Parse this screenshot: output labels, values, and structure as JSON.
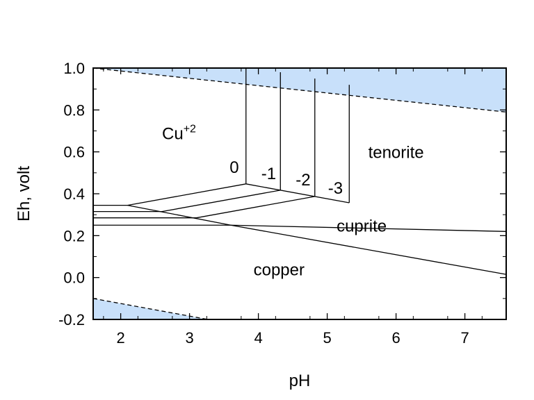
{
  "chart_data": {
    "type": "line",
    "title": "",
    "xlabel": "pH",
    "ylabel": "Eh, volt",
    "xlim": [
      1.6,
      7.6
    ],
    "ylim": [
      -0.2,
      1.0
    ],
    "xticks": [
      2,
      3,
      4,
      5,
      6,
      7
    ],
    "yticks": [
      -0.2,
      0.0,
      0.2,
      0.4,
      0.6,
      0.8,
      1.0
    ],
    "ytick_labels": [
      "-0.2",
      "0.0",
      "0.2",
      "0.4",
      "0.6",
      "0.8",
      "1.0"
    ],
    "grid": false,
    "colors": {
      "water_instability": "#c8e0fa",
      "lines": "#000000"
    },
    "water_upper": {
      "x": [
        1.6,
        7.6
      ],
      "y": [
        1.0,
        0.79
      ]
    },
    "water_lower": {
      "x": [
        1.6,
        7.6
      ],
      "y": [
        -0.1,
        -0.46
      ]
    },
    "series": [
      {
        "x": [
          1.6,
          3.6,
          7.6
        ],
        "y": [
          0.25,
          0.25,
          0.015
        ]
      },
      {
        "x": [
          3.6,
          7.6
        ],
        "y": [
          0.25,
          0.22
        ]
      },
      {
        "x": [
          1.6,
          2.1,
          3.82
        ],
        "y": [
          0.345,
          0.345,
          0.447
        ]
      },
      {
        "x": [
          1.6,
          2.6,
          4.32
        ],
        "y": [
          0.315,
          0.315,
          0.417
        ]
      },
      {
        "x": [
          1.6,
          3.1,
          4.82
        ],
        "y": [
          0.285,
          0.285,
          0.387
        ]
      },
      {
        "x": [
          2.1,
          3.6
        ],
        "y": [
          0.345,
          0.25
        ]
      },
      {
        "x": [
          3.82,
          5.32
        ],
        "y": [
          0.447,
          0.357
        ]
      },
      {
        "x": [
          3.82,
          3.82
        ],
        "y": [
          0.447,
          1.0
        ]
      },
      {
        "x": [
          4.32,
          4.32
        ],
        "y": [
          0.417,
          0.98
        ]
      },
      {
        "x": [
          4.82,
          4.82
        ],
        "y": [
          0.387,
          0.95
        ]
      },
      {
        "x": [
          5.32,
          5.32
        ],
        "y": [
          0.357,
          0.92
        ]
      }
    ],
    "annotations": [
      {
        "text": "Cu",
        "sup": "+2",
        "x": 2.6,
        "y": 0.66,
        "anchor": "start"
      },
      {
        "text": "tenorite",
        "x": 6.0,
        "y": 0.57
      },
      {
        "text": "cuprite",
        "x": 5.5,
        "y": 0.22
      },
      {
        "text": "copper",
        "x": 4.3,
        "y": 0.01
      }
    ],
    "activity_labels": [
      {
        "text": "0",
        "x": 3.65,
        "y": 0.5
      },
      {
        "text": "-1",
        "x": 4.15,
        "y": 0.47
      },
      {
        "text": "-2",
        "x": 4.65,
        "y": 0.44
      },
      {
        "text": "-3",
        "x": 5.12,
        "y": 0.4
      }
    ]
  }
}
